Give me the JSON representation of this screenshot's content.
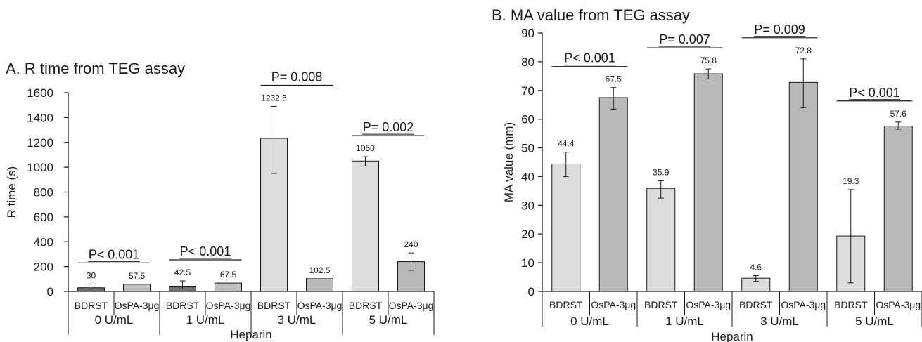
{
  "chart_data": [
    {
      "type": "bar",
      "title": "A. R time from TEG assay",
      "ylabel": "R time (s)",
      "xlabel": "Heparin",
      "ylim": [
        0,
        1600
      ],
      "yticks": [
        0,
        200,
        400,
        600,
        800,
        1000,
        1200,
        1400,
        1600
      ],
      "groups": [
        "0 U/mL",
        "1 U/mL",
        "3 U/mL",
        "5 U/mL"
      ],
      "categories": [
        "BDRST",
        "OsPA-3μg"
      ],
      "bars": [
        {
          "group": "0 U/mL",
          "category": "BDRST",
          "value": 30,
          "label": "30",
          "err": [
            20,
            60
          ],
          "color": "#707070"
        },
        {
          "group": "0 U/mL",
          "category": "OsPA-3μg",
          "value": 57.5,
          "label": "57.5",
          "err": null,
          "color": "#c0c0c0"
        },
        {
          "group": "1 U/mL",
          "category": "BDRST",
          "value": 42.5,
          "label": "42.5",
          "err": [
            20,
            85
          ],
          "color": "#707070"
        },
        {
          "group": "1 U/mL",
          "category": "OsPA-3μg",
          "value": 67.5,
          "label": "67.5",
          "err": null,
          "color": "#c0c0c0"
        },
        {
          "group": "3 U/mL",
          "category": "BDRST",
          "value": 1232.5,
          "label": "1232.5",
          "err": [
            950,
            1490
          ],
          "color": "#dcdcdc"
        },
        {
          "group": "3 U/mL",
          "category": "OsPA-3μg",
          "value": 102.5,
          "label": "102.5",
          "err": null,
          "color": "#b8b8b8"
        },
        {
          "group": "5 U/mL",
          "category": "BDRST",
          "value": 1050,
          "label": "1050",
          "err": [
            1010,
            1085
          ],
          "color": "#dcdcdc"
        },
        {
          "group": "5 U/mL",
          "category": "OsPA-3μg",
          "value": 240,
          "label": "240",
          "err": [
            170,
            310
          ],
          "color": "#b8b8b8"
        }
      ],
      "pvalues": [
        "P< 0.001",
        "P< 0.001",
        "P= 0.008",
        "P= 0.002"
      ]
    },
    {
      "type": "bar",
      "title": "B. MA value from TEG assay",
      "ylabel": "MA value (mm)",
      "xlabel": "Heparin",
      "ylim": [
        0,
        90
      ],
      "yticks": [
        0,
        10,
        20,
        30,
        40,
        50,
        60,
        70,
        80,
        90
      ],
      "groups": [
        "0 U/mL",
        "1 U/mL",
        "3 U/mL",
        "5 U/mL"
      ],
      "categories": [
        "BDRST",
        "OsPA-3μg"
      ],
      "bars": [
        {
          "group": "0 U/mL",
          "category": "BDRST",
          "value": 44.4,
          "label": "44.4",
          "err": [
            40,
            48.5
          ],
          "color": "#dcdcdc"
        },
        {
          "group": "0 U/mL",
          "category": "OsPA-3μg",
          "value": 67.5,
          "label": "67.5",
          "err": [
            63.5,
            71
          ],
          "color": "#b8b8b8"
        },
        {
          "group": "1 U/mL",
          "category": "BDRST",
          "value": 35.9,
          "label": "35.9",
          "err": [
            32.5,
            38.5
          ],
          "color": "#dcdcdc"
        },
        {
          "group": "1 U/mL",
          "category": "OsPA-3μg",
          "value": 75.8,
          "label": "75.8",
          "err": [
            74,
            77.5
          ],
          "color": "#b8b8b8"
        },
        {
          "group": "3 U/mL",
          "category": "BDRST",
          "value": 4.6,
          "label": "4.6",
          "err": [
            3.5,
            5.5
          ],
          "color": "#dcdcdc"
        },
        {
          "group": "3 U/mL",
          "category": "OsPA-3μg",
          "value": 72.8,
          "label": "72.8",
          "err": [
            64,
            81
          ],
          "color": "#b8b8b8"
        },
        {
          "group": "5 U/mL",
          "category": "BDRST",
          "value": 19.3,
          "label": "19.3",
          "err": [
            3,
            35.5
          ],
          "color": "#dcdcdc"
        },
        {
          "group": "5 U/mL",
          "category": "OsPA-3μg",
          "value": 57.6,
          "label": "57.6",
          "err": [
            56.5,
            59
          ],
          "color": "#b8b8b8"
        }
      ],
      "pvalues": [
        "P< 0.001",
        "P= 0.007",
        "P= 0.009",
        "P< 0.001"
      ]
    }
  ]
}
